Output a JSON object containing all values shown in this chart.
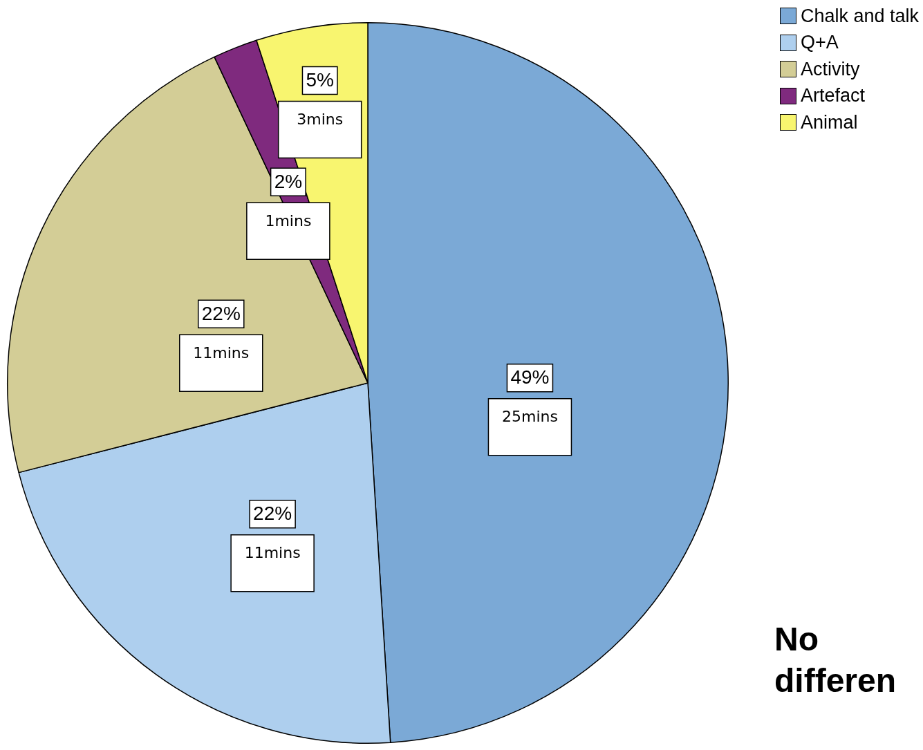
{
  "chart_data": {
    "type": "pie",
    "categories": [
      "Chalk and talk",
      "Q+A",
      "Activity",
      "Artefact",
      "Animal"
    ],
    "values": [
      49,
      22,
      22,
      2,
      5
    ],
    "colors": [
      "#7ba9d6",
      "#aecfee",
      "#d3cd96",
      "#7f2a7e",
      "#f8f56f"
    ],
    "value_labels": [
      "49%",
      "22%",
      "22%",
      "2%",
      "5%"
    ],
    "legend": "top right",
    "annotations": [
      {
        "text": "25mins",
        "x": "Chalk and talk"
      },
      {
        "text": "11mins",
        "x": "Q+A"
      },
      {
        "text": "11mins",
        "x": "Activity"
      },
      {
        "text": "1mins",
        "x": "Artefact"
      },
      {
        "text": "3mins",
        "x": "Animal"
      },
      "No differen"
    ]
  }
}
